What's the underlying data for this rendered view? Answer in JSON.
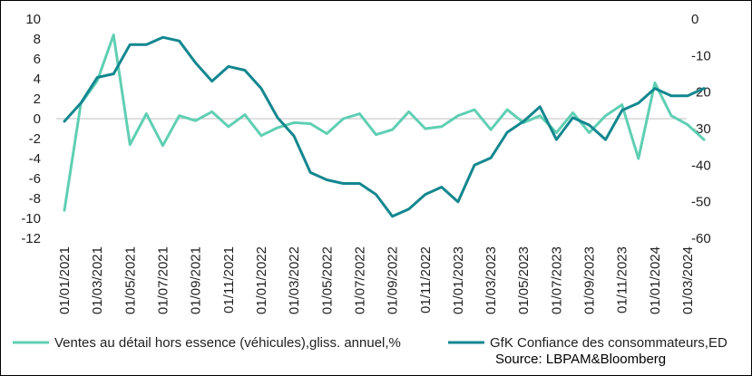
{
  "chart_data": {
    "type": "line",
    "title": "",
    "x": [
      "2021-01-01",
      "2021-02-01",
      "2021-03-01",
      "2021-04-01",
      "2021-05-01",
      "2021-06-01",
      "2021-07-01",
      "2021-08-01",
      "2021-09-01",
      "2021-10-01",
      "2021-11-01",
      "2021-12-01",
      "2022-01-01",
      "2022-02-01",
      "2022-03-01",
      "2022-04-01",
      "2022-05-01",
      "2022-06-01",
      "2022-07-01",
      "2022-08-01",
      "2022-09-01",
      "2022-10-01",
      "2022-11-01",
      "2022-12-01",
      "2023-01-01",
      "2023-02-01",
      "2023-03-01",
      "2023-04-01",
      "2023-05-01",
      "2023-06-01",
      "2023-07-01",
      "2023-08-01",
      "2023-09-01",
      "2023-10-01",
      "2023-11-01",
      "2023-12-01",
      "2024-01-01",
      "2024-02-01",
      "2024-03-01",
      "2024-04-01"
    ],
    "x_tick_labels": [
      "01/01/2021",
      "01/03/2021",
      "01/05/2021",
      "01/07/2021",
      "01/09/2021",
      "01/11/2021",
      "01/01/2022",
      "01/03/2022",
      "01/05/2022",
      "01/07/2022",
      "01/09/2022",
      "01/11/2022",
      "01/01/2023",
      "01/03/2023",
      "01/05/2023",
      "01/07/2023",
      "01/09/2023",
      "01/11/2023",
      "01/01/2024",
      "01/03/2024"
    ],
    "left_axis": {
      "ylim": [
        -12,
        10
      ],
      "ticks": [
        "10",
        "8",
        "6",
        "4",
        "2",
        "0",
        "-2",
        "-4",
        "-6",
        "-8",
        "-10",
        "-12"
      ]
    },
    "right_axis": {
      "ylim": [
        -60,
        0
      ],
      "ticks": [
        "0",
        "-10",
        "-20",
        "-30",
        "-40",
        "-50",
        "-60"
      ]
    },
    "grid": false,
    "legend_position": "bottom",
    "series": [
      {
        "name": "Ventes au détail hors essence (véhicules),gliss. annuel,%",
        "axis": "left",
        "color": "#5fcfb3",
        "values": [
          -9.2,
          1.5,
          3.8,
          8.4,
          -2.6,
          0.5,
          -2.7,
          0.3,
          -0.2,
          0.7,
          -0.8,
          0.4,
          -1.7,
          -0.9,
          -0.4,
          -0.5,
          -1.5,
          0.0,
          0.5,
          -1.6,
          -1.1,
          0.7,
          -1.0,
          -0.8,
          0.3,
          0.9,
          -1.1,
          0.9,
          -0.4,
          0.3,
          -1.4,
          0.6,
          -1.4,
          0.3,
          1.4,
          -4.0,
          3.6,
          0.3,
          -0.6,
          -2.1
        ]
      },
      {
        "name": "GfK Confiance des consommateurs,ED",
        "axis": "right",
        "color": "#13878f",
        "values": [
          -28,
          -23,
          -16,
          -15,
          -7,
          -7,
          -5,
          -6,
          -12,
          -17,
          -13,
          -14,
          -19,
          -27,
          -32,
          -42,
          -44,
          -45,
          -45,
          -48,
          -54,
          -52,
          -48,
          -46,
          -50,
          -40,
          -38,
          -31,
          -28,
          -24,
          -33,
          -27,
          -29,
          -33,
          -25,
          -23,
          -19,
          -21,
          -21,
          -19
        ]
      }
    ],
    "source": "Source: LBPAM&Bloomberg"
  }
}
